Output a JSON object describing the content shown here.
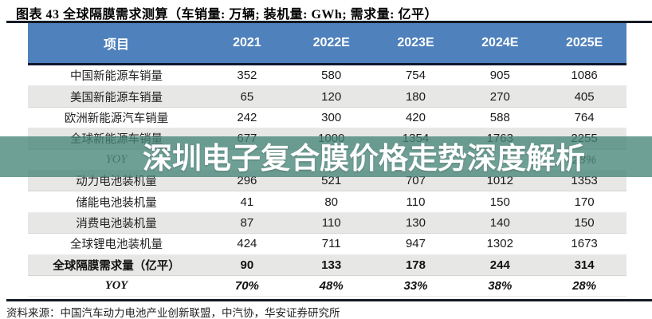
{
  "title": "图表 43 全球隔膜需求测算（车销量: 万辆; 装机量: GWh; 需求量: 亿平）",
  "table": {
    "header": {
      "item": "项目",
      "years": [
        "2021",
        "2022E",
        "2023E",
        "2024E",
        "2025E"
      ]
    },
    "rows": [
      {
        "label": "中国新能源车销量",
        "values": [
          "352",
          "580",
          "754",
          "905",
          "1086"
        ]
      },
      {
        "label": "美国新能源车销量",
        "values": [
          "65",
          "120",
          "180",
          "270",
          "405"
        ]
      },
      {
        "label": "欧洲新能源汽车销量",
        "values": [
          "242",
          "300",
          "420",
          "588",
          "764"
        ]
      },
      {
        "label": "全球新能源车销量",
        "values": [
          "677",
          "1000",
          "1354",
          "1763",
          "2255"
        ]
      },
      {
        "label": "YOY",
        "values": [
          "",
          "",
          "",
          "",
          "28%"
        ]
      },
      {
        "label": "动力电池装机量",
        "values": [
          "296",
          "521",
          "707",
          "1012",
          "1353"
        ]
      },
      {
        "label": "储能电池装机量",
        "values": [
          "41",
          "80",
          "110",
          "150",
          "170"
        ]
      },
      {
        "label": "消费电池装机量",
        "values": [
          "87",
          "110",
          "130",
          "140",
          "150"
        ]
      },
      {
        "label": "全球锂电池装机量",
        "values": [
          "424",
          "711",
          "947",
          "1302",
          "1673"
        ]
      },
      {
        "label": "全球隔膜需求量（亿平）",
        "values": [
          "90",
          "133",
          "178",
          "244",
          "314"
        ]
      },
      {
        "label": "YOY",
        "values": [
          "70%",
          "48%",
          "33%",
          "38%",
          "28%"
        ]
      }
    ]
  },
  "watermark": {
    "text": "深圳电子复合膜价格走势深度解析",
    "band_color": "rgba(70,133,120,0.78)"
  },
  "source": "资料来源：中国汽车动力电池产业创新联盟，中汽协，华安证券研究所",
  "colors": {
    "header_bg": "#4f81bd",
    "alt_row_bg": "#e7e7e5",
    "rule": "#141a26",
    "watermark_text": "#ffffff"
  }
}
